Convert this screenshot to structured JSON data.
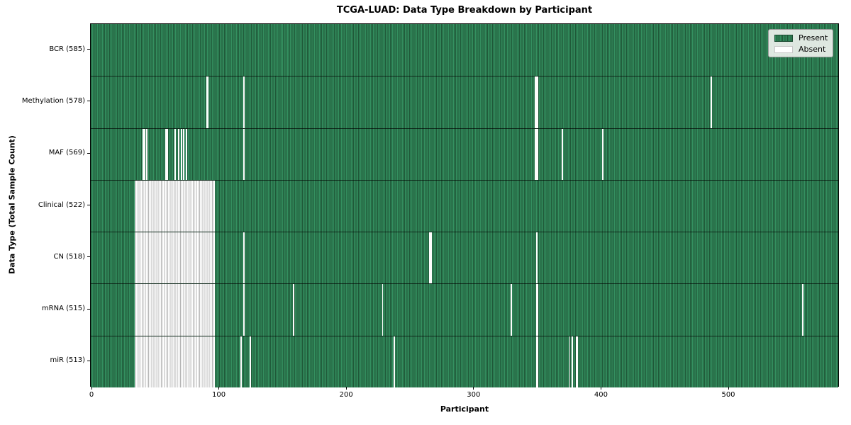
{
  "figure": {
    "title": "TCGA-LUAD: Data Type Breakdown by Participant",
    "xlabel": "Participant",
    "ylabel": "Data Type (Total Sample Count)"
  },
  "legend": {
    "items": [
      {
        "label": "Present",
        "color": "#2e8b57"
      },
      {
        "label": "Absent",
        "color": "#ffffff"
      }
    ]
  },
  "chart_data": {
    "type": "heatmap",
    "title": "TCGA-LUAD: Data Type Breakdown by Participant",
    "xlabel": "Participant",
    "ylabel": "Data Type (Total Sample Count)",
    "legend": [
      "Present",
      "Absent"
    ],
    "legend_position": "upper right",
    "grid": false,
    "colors": {
      "present": "#2e8b57",
      "absent": "#ffffff"
    },
    "n_participants": 585,
    "x_range": [
      0,
      585
    ],
    "x_ticks": [
      0,
      100,
      200,
      300,
      400,
      500
    ],
    "rows": [
      {
        "label": "BCR (585)",
        "data_type": "BCR",
        "present_count": 585,
        "absent_count": 0,
        "absent_ranges": []
      },
      {
        "label": "Methylation (578)",
        "data_type": "Methylation",
        "present_count": 578,
        "absent_count": 7,
        "absent_ranges": [
          [
            90,
            91
          ],
          [
            119,
            119
          ],
          [
            348,
            350
          ],
          [
            486,
            486
          ]
        ]
      },
      {
        "label": "MAF (569)",
        "data_type": "MAF",
        "present_count": 569,
        "absent_count": 16,
        "absent_ranges": [
          [
            40,
            41
          ],
          [
            43,
            43
          ],
          [
            58,
            59
          ],
          [
            65,
            65
          ],
          [
            68,
            68
          ],
          [
            70,
            70
          ],
          [
            72,
            72
          ],
          [
            74,
            74
          ],
          [
            119,
            119
          ],
          [
            348,
            350
          ],
          [
            369,
            369
          ],
          [
            401,
            401
          ]
        ]
      },
      {
        "label": "Clinical (522)",
        "data_type": "Clinical",
        "present_count": 522,
        "absent_count": 63,
        "absent_ranges": [
          [
            34,
            96
          ]
        ]
      },
      {
        "label": "CN (518)",
        "data_type": "CN",
        "present_count": 518,
        "absent_count": 67,
        "absent_ranges": [
          [
            34,
            96
          ],
          [
            119,
            119
          ],
          [
            265,
            266
          ],
          [
            349,
            349
          ]
        ]
      },
      {
        "label": "mRNA (515)",
        "data_type": "mRNA",
        "present_count": 515,
        "absent_count": 70,
        "absent_ranges": [
          [
            34,
            96
          ],
          [
            119,
            119
          ],
          [
            158,
            158
          ],
          [
            228,
            228
          ],
          [
            329,
            329
          ],
          [
            349,
            350
          ],
          [
            558,
            558
          ]
        ]
      },
      {
        "label": "miR (513)",
        "data_type": "miR",
        "present_count": 513,
        "absent_count": 72,
        "absent_ranges": [
          [
            34,
            96
          ],
          [
            117,
            117
          ],
          [
            124,
            124
          ],
          [
            237,
            237
          ],
          [
            349,
            350
          ],
          [
            375,
            375
          ],
          [
            377,
            377
          ],
          [
            380,
            381
          ]
        ]
      }
    ]
  }
}
